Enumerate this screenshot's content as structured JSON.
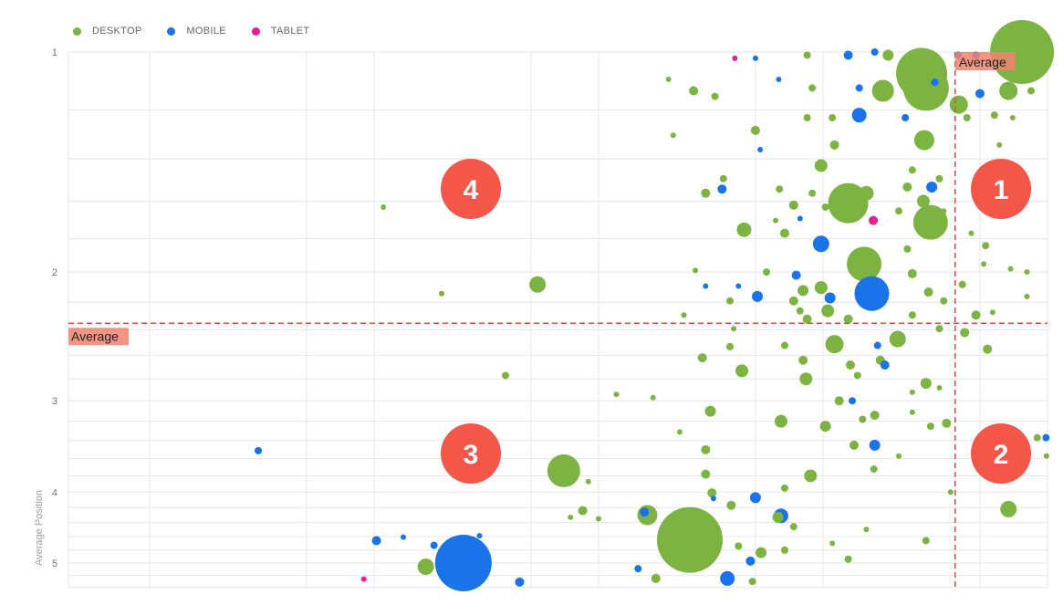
{
  "chart_data": {
    "type": "scatter",
    "subtype": "bubble",
    "title": "",
    "xlabel": "",
    "ylabel": "Average Position",
    "x_scale": "log",
    "x_tick_labels_shown": false,
    "xlim": [
      0.087,
      2000
    ],
    "x_gridlines": [
      0.2,
      1,
      2,
      10,
      20,
      100,
      200,
      1000,
      2000
    ],
    "y_scale": "log",
    "y_reversed": true,
    "ylim": [
      1,
      5.42
    ],
    "y_ticks": [
      1,
      2,
      3,
      4,
      5
    ],
    "y_tick_labels": [
      "1",
      "2",
      "3",
      "4",
      "5"
    ],
    "y_minor_step": 0.2,
    "grid": true,
    "legend": {
      "placement": "top-left",
      "entries": [
        "DESKTOP",
        "MOBILE",
        "TABLET"
      ]
    },
    "colors": {
      "DESKTOP": "#7cb342",
      "MOBILE": "#1a73e8",
      "TABLET": "#e91e8c",
      "average_line": "#e34b3f",
      "quadrant_marker": "#f4574a",
      "average_label_bg": "#f0826e"
    },
    "averages": {
      "x": 776,
      "y": 2.35,
      "label": "Average"
    },
    "quadrants": [
      {
        "label": "1",
        "position": "top-right"
      },
      {
        "label": "2",
        "position": "bottom-right"
      },
      {
        "label": "3",
        "position": "bottom-left"
      },
      {
        "label": "4",
        "position": "top-left"
      }
    ],
    "point_format": [
      "x",
      "y",
      "size"
    ],
    "series": [
      {
        "name": "DESKTOP",
        "points": [
          [
            1540,
            1.0,
            1225
          ],
          [
            550,
            1.07,
            784
          ],
          [
            575,
            1.12,
            625
          ],
          [
            51,
            4.65,
            1296
          ],
          [
            259,
            1.61,
            484
          ],
          [
            603,
            1.71,
            361
          ],
          [
            305,
            1.95,
            361
          ],
          [
            14,
            3.74,
            324
          ],
          [
            370,
            1.13,
            144
          ],
          [
            565,
            1.32,
            121
          ],
          [
            1340,
            1.13,
            100
          ],
          [
            805,
            1.18,
            100
          ],
          [
            89,
            1.75,
            64
          ],
          [
            10.7,
            2.08,
            81
          ],
          [
            33,
            4.3,
            121
          ],
          [
            225,
            2.51,
            100
          ],
          [
            430,
            2.47,
            81
          ],
          [
            1340,
            4.22,
            81
          ],
          [
            3.4,
            5.06,
            81
          ],
          [
            196,
            1.43,
            49
          ],
          [
            312,
            1.56,
            64
          ],
          [
            560,
            1.6,
            49
          ],
          [
            87,
            2.73,
            49
          ],
          [
            63,
            3.1,
            36
          ],
          [
            130,
            3.2,
            49
          ],
          [
            168,
            2.8,
            49
          ],
          [
            205,
            3.25,
            36
          ],
          [
            176,
            3.8,
            49
          ],
          [
            275,
            3.45,
            25
          ],
          [
            265,
            2.68,
            25
          ],
          [
            575,
            2.84,
            36
          ],
          [
            710,
            3.22,
            25
          ],
          [
            60,
            3.5,
            25
          ],
          [
            60,
            3.78,
            25
          ],
          [
            78,
            4.17,
            25
          ],
          [
            36,
            5.25,
            25
          ],
          [
            126,
            4.33,
            36
          ],
          [
            2.2,
            1.63,
            9
          ],
          [
            4.0,
            2.14,
            9
          ],
          [
            7.7,
            2.77,
            16
          ],
          [
            72,
            1.49,
            16
          ],
          [
            60,
            1.56,
            25
          ],
          [
            100,
            1.28,
            25
          ],
          [
            53,
            1.13,
            25
          ],
          [
            66,
            1.15,
            16
          ],
          [
            41,
            1.09,
            9
          ],
          [
            43,
            1.3,
            9
          ],
          [
            54,
            1.99,
            9
          ],
          [
            48,
            2.29,
            9
          ],
          [
            205,
            1.63,
            16
          ],
          [
            390,
            1.01,
            36
          ],
          [
            170,
            1.01,
            16
          ],
          [
            179,
            1.12,
            16
          ],
          [
            170,
            1.23,
            16
          ],
          [
            225,
            1.34,
            25
          ],
          [
            220,
            1.23,
            16
          ],
          [
            1160,
            1.22,
            16
          ],
          [
            875,
            1.23,
            16
          ],
          [
            1220,
            1.34,
            9
          ],
          [
            1400,
            1.23,
            9
          ],
          [
            1540,
            1.08,
            25
          ],
          [
            1690,
            1.13,
            16
          ],
          [
            915,
            1.77,
            9
          ],
          [
            1060,
            1.84,
            16
          ],
          [
            1040,
            1.95,
            9
          ],
          [
            1370,
            1.98,
            9
          ],
          [
            1620,
            2.0,
            9
          ],
          [
            1620,
            2.16,
            9
          ],
          [
            835,
            2.08,
            16
          ],
          [
            960,
            2.29,
            25
          ],
          [
            1080,
            2.55,
            25
          ],
          [
            855,
            2.42,
            25
          ],
          [
            1140,
            2.27,
            9
          ],
          [
            660,
            1.49,
            16
          ],
          [
            690,
            1.65,
            9
          ],
          [
            475,
            1.53,
            25
          ],
          [
            500,
            1.45,
            16
          ],
          [
            435,
            1.65,
            16
          ],
          [
            475,
            1.86,
            16
          ],
          [
            500,
            2.01,
            25
          ],
          [
            590,
            2.13,
            25
          ],
          [
            660,
            2.39,
            16
          ],
          [
            690,
            2.19,
            16
          ],
          [
            500,
            2.29,
            16
          ],
          [
            360,
            2.64,
            25
          ],
          [
            285,
            2.77,
            16
          ],
          [
            236,
            3.0,
            25
          ],
          [
            300,
            3.18,
            16
          ],
          [
            340,
            3.14,
            25
          ],
          [
            435,
            3.57,
            9
          ],
          [
            337,
            3.72,
            16
          ],
          [
            740,
            4.0,
            9
          ],
          [
            575,
            4.66,
            16
          ],
          [
            1800,
            3.37,
            16
          ],
          [
            1980,
            3.57,
            9
          ],
          [
            1010,
            1.6,
            16
          ],
          [
            196,
            2.1,
            49
          ],
          [
            163,
            2.12,
            36
          ],
          [
            148,
            2.19,
            25
          ],
          [
            170,
            2.32,
            25
          ],
          [
            135,
            2.52,
            16
          ],
          [
            163,
            2.64,
            25
          ],
          [
            210,
            2.26,
            49
          ],
          [
            259,
            2.32,
            25
          ],
          [
            135,
            3.95,
            16
          ],
          [
            148,
            4.46,
            16
          ],
          [
            135,
            4.8,
            16
          ],
          [
            220,
            4.7,
            9
          ],
          [
            259,
            4.94,
            16
          ],
          [
            312,
            4.5,
            9
          ],
          [
            106,
            4.84,
            36
          ],
          [
            84,
            4.74,
            16
          ],
          [
            97,
            5.3,
            16
          ],
          [
            64,
            4.01,
            25
          ],
          [
            20,
            4.35,
            9
          ],
          [
            17,
            4.24,
            25
          ],
          [
            15,
            4.33,
            9
          ],
          [
            18,
            3.87,
            9
          ],
          [
            24,
            2.94,
            9
          ],
          [
            35,
            2.97,
            9
          ],
          [
            46,
            3.31,
            9
          ],
          [
            58,
            2.62,
            25
          ],
          [
            77,
            2.53,
            16
          ],
          [
            80,
            2.39,
            9
          ],
          [
            77,
            2.19,
            16
          ],
          [
            135,
            1.77,
            25
          ],
          [
            123,
            1.7,
            9
          ],
          [
            148,
            1.62,
            25
          ],
          [
            179,
            1.56,
            16
          ],
          [
            128,
            1.54,
            16
          ],
          [
            112,
            2.0,
            16
          ],
          [
            158,
            2.26,
            16
          ],
          [
            660,
            2.88,
            9
          ],
          [
            500,
            2.92,
            9
          ],
          [
            603,
            3.25,
            16
          ],
          [
            500,
            3.11,
            9
          ]
        ]
      },
      {
        "name": "MOBILE",
        "points": [
          [
            5.0,
            5.0,
            961
          ],
          [
            330,
            2.14,
            361
          ],
          [
            290,
            1.22,
            64
          ],
          [
            196,
            1.83,
            81
          ],
          [
            75,
            5.25,
            64
          ],
          [
            130,
            4.31,
            64
          ],
          [
            340,
            3.45,
            36
          ],
          [
            610,
            1.53,
            36
          ],
          [
            100,
            4.07,
            36
          ],
          [
            8.9,
            5.31,
            25
          ],
          [
            2.05,
            4.66,
            25
          ],
          [
            3.7,
            4.73,
            16
          ],
          [
            2.7,
            4.61,
            9
          ],
          [
            5.9,
            4.59,
            9
          ],
          [
            0.61,
            3.51,
            16
          ],
          [
            71,
            1.54,
            25
          ],
          [
            105,
            1.36,
            9
          ],
          [
            100,
            1.02,
            9
          ],
          [
            127,
            1.09,
            9
          ],
          [
            102,
            2.16,
            36
          ],
          [
            152,
            2.02,
            25
          ],
          [
            84,
            2.09,
            9
          ],
          [
            60,
            2.09,
            9
          ],
          [
            158,
            1.69,
            9
          ],
          [
            259,
            1.01,
            25
          ],
          [
            340,
            1.0,
            16
          ],
          [
            290,
            1.12,
            16
          ],
          [
            465,
            1.23,
            16
          ],
          [
            1000,
            1.14,
            25
          ],
          [
            1970,
            3.37,
            16
          ],
          [
            215,
            2.17,
            36
          ],
          [
            377,
            2.68,
            25
          ],
          [
            350,
            2.52,
            16
          ],
          [
            270,
            3.0,
            16
          ],
          [
            95,
            4.97,
            25
          ],
          [
            65,
            4.08,
            9
          ],
          [
            32,
            4.26,
            25
          ],
          [
            30,
            5.09,
            16
          ],
          [
            800,
            1.01,
            16
          ],
          [
            960,
            1.01,
            16
          ],
          [
            630,
            1.1,
            16
          ]
        ]
      },
      {
        "name": "TABLET",
        "points": [
          [
            1.8,
            5.26,
            9
          ],
          [
            81,
            1.02,
            9
          ],
          [
            335,
            1.7,
            25
          ]
        ]
      }
    ]
  }
}
